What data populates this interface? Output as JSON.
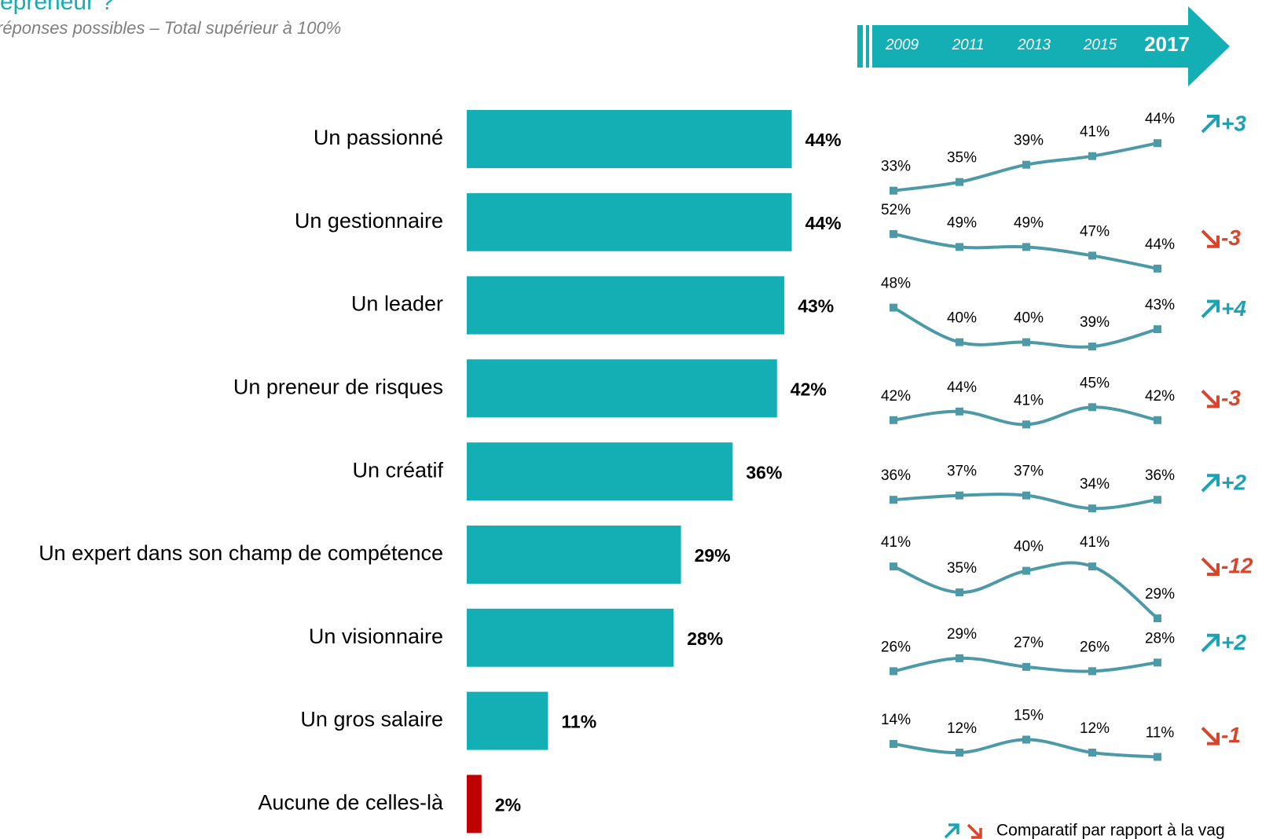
{
  "chart_data": [
    {
      "type": "bar",
      "title": "epreneur ?",
      "subtitle": "réponses possibles – Total supérieur à 100%",
      "categories": [
        "Un passionné",
        "Un gestionnaire",
        "Un leader",
        "Un preneur de risques",
        "Un créatif",
        "Un expert dans son champ de compétence",
        "Un visionnaire",
        "Un gros salaire",
        "Aucune de celles-là"
      ],
      "values": [
        44,
        44,
        43,
        42,
        36,
        29,
        28,
        11,
        2
      ],
      "value_labels": [
        "44%",
        "44%",
        "43%",
        "42%",
        "36%",
        "29%",
        "28%",
        "11%",
        "2%"
      ],
      "colors": [
        "#14aeb5",
        "#14aeb5",
        "#14aeb5",
        "#14aeb5",
        "#14aeb5",
        "#14aeb5",
        "#14aeb5",
        "#14aeb5",
        "#c00000"
      ],
      "xlim": [
        0,
        50
      ]
    },
    {
      "type": "line",
      "x": [
        "2009",
        "2011",
        "2013",
        "2015",
        "2017"
      ],
      "series": [
        {
          "color": "#4c9aa8",
          "values": [
            33,
            35,
            39,
            41,
            44
          ],
          "value_labels": [
            "33%",
            "35%",
            "39%",
            "41%",
            "44%"
          ]
        },
        {
          "color": "#4c9aa8",
          "values": [
            52,
            49,
            49,
            47,
            44
          ],
          "value_labels": [
            "52%",
            "49%",
            "49%",
            "47%",
            "44%"
          ]
        },
        {
          "color": "#4c9aa8",
          "values": [
            48,
            40,
            40,
            39,
            43
          ],
          "value_labels": [
            "48%",
            "40%",
            "40%",
            "39%",
            "43%"
          ]
        },
        {
          "color": "#4c9aa8",
          "values": [
            42,
            44,
            41,
            45,
            42
          ],
          "value_labels": [
            "42%",
            "44%",
            "41%",
            "45%",
            "42%"
          ]
        },
        {
          "color": "#4c9aa8",
          "values": [
            36,
            37,
            37,
            34,
            36
          ],
          "value_labels": [
            "36%",
            "37%",
            "37%",
            "34%",
            "36%"
          ]
        },
        {
          "color": "#4c9aa8",
          "values": [
            41,
            35,
            40,
            41,
            29
          ],
          "value_labels": [
            "41%",
            "35%",
            "40%",
            "41%",
            "29%"
          ]
        },
        {
          "color": "#4c9aa8",
          "values": [
            26,
            29,
            27,
            26,
            28
          ],
          "value_labels": [
            "26%",
            "29%",
            "27%",
            "26%",
            "28%"
          ]
        },
        {
          "color": "#4c9aa8",
          "values": [
            14,
            12,
            15,
            12,
            11
          ],
          "value_labels": [
            "14%",
            "12%",
            "15%",
            "12%",
            "11%"
          ]
        }
      ],
      "changes": {
        "values": [
          3,
          -3,
          4,
          -3,
          2,
          -12,
          2,
          -1
        ],
        "value_labels": [
          "+3",
          "-3",
          "+4",
          "-3",
          "+2",
          "-12",
          "+2",
          "-1"
        ],
        "up_color": "#1aa3b5",
        "down_color": "#d9452b"
      },
      "note": "Comparatif par rapport à la vag"
    }
  ]
}
